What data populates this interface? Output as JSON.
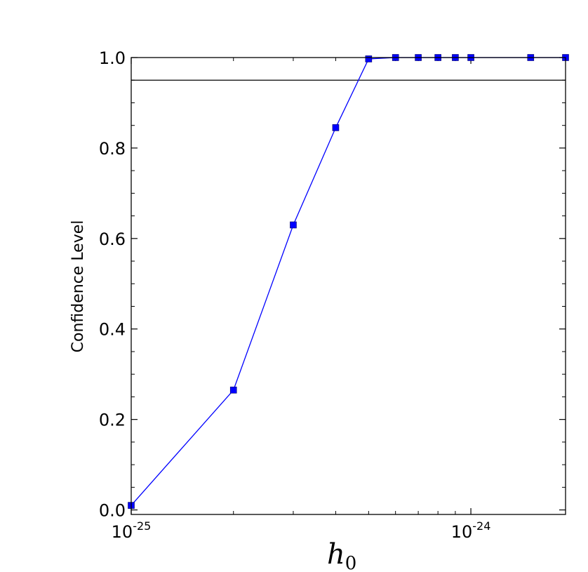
{
  "chart_data": {
    "type": "line",
    "title": "",
    "xlabel": "h",
    "xlabel_subscript": "0",
    "ylabel": "Confidence Level",
    "x_scale": "log",
    "xlim": [
      1e-25,
      1.9e-24
    ],
    "ylim": [
      -0.01,
      1.0
    ],
    "grid": false,
    "legend": "none",
    "x_ticks": [
      {
        "value": 1e-25,
        "base": "10",
        "exponent": "-25"
      },
      {
        "value": 1e-24,
        "base": "10",
        "exponent": "-24"
      }
    ],
    "y_ticks": [
      {
        "value": 0.0,
        "label": "0.0"
      },
      {
        "value": 0.2,
        "label": "0.2"
      },
      {
        "value": 0.4,
        "label": "0.4"
      },
      {
        "value": 0.6,
        "label": "0.6"
      },
      {
        "value": 0.8,
        "label": "0.8"
      },
      {
        "value": 1.0,
        "label": "1.0"
      }
    ],
    "reference_line": {
      "y": 0.95,
      "color": "#000000"
    },
    "series": [
      {
        "color": "#0000ff",
        "marker": "square",
        "x": [
          1e-25,
          2e-25,
          3e-25,
          4e-25,
          5e-25,
          6e-25,
          7e-25,
          8e-25,
          9e-25,
          1e-24,
          1.5e-24,
          1.9e-24
        ],
        "y": [
          0.01,
          0.265,
          0.63,
          0.845,
          0.997,
          1.0,
          1.0,
          1.0,
          1.0,
          1.0,
          1.0,
          1.0
        ]
      }
    ]
  }
}
